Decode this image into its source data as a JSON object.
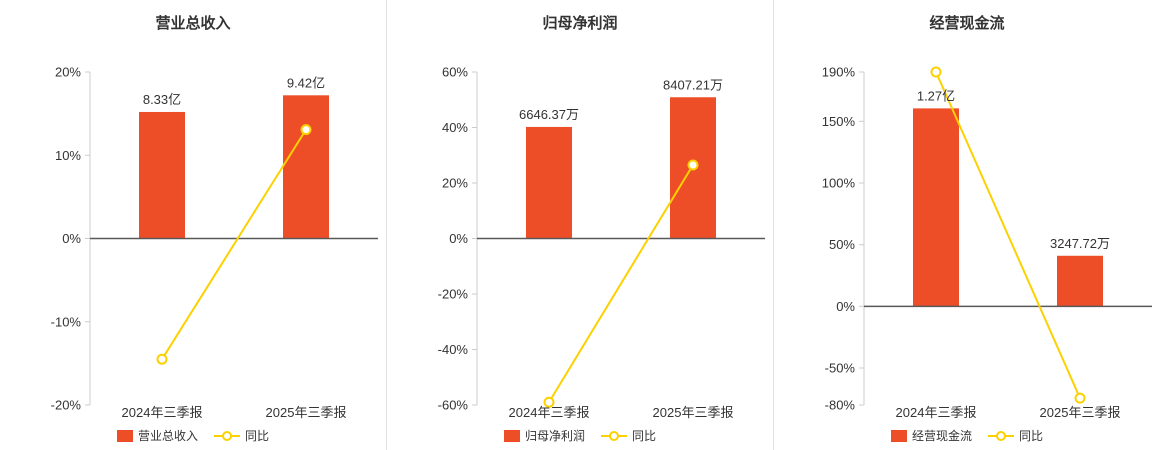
{
  "colors": {
    "bar": "#ed4d27",
    "line": "#fcd100",
    "axis": "#cccccc",
    "zero_line": "#595959",
    "text": "#333333",
    "divider": "#e0e0e0"
  },
  "chart_data": [
    {
      "type": "bar",
      "title": "营业总收入",
      "categories": [
        "2024年三季报",
        "2025年三季报"
      ],
      "ylim": [
        -20,
        20
      ],
      "yticks": [
        20,
        10,
        0,
        -10,
        -20
      ],
      "grid": false,
      "legend_position": "bottom",
      "bar_series": {
        "name": "营业总收入",
        "labels": [
          "8.33亿",
          "9.42亿"
        ],
        "display_values_axis_units": [
          15.2,
          17.2
        ]
      },
      "line_series": {
        "name": "同比",
        "unit": "%",
        "values": [
          -14.5,
          13.08
        ]
      }
    },
    {
      "type": "bar",
      "title": "归母净利润",
      "categories": [
        "2024年三季报",
        "2025年三季报"
      ],
      "ylim": [
        -60,
        60
      ],
      "yticks": [
        60,
        40,
        20,
        0,
        -20,
        -40,
        -60
      ],
      "grid": false,
      "legend_position": "bottom",
      "bar_series": {
        "name": "归母净利润",
        "labels": [
          "6646.37万",
          "8407.21万"
        ],
        "display_values_axis_units": [
          40.2,
          50.9
        ]
      },
      "line_series": {
        "name": "同比",
        "unit": "%",
        "values": [
          -59,
          26.49
        ]
      }
    },
    {
      "type": "bar",
      "title": "经营现金流",
      "categories": [
        "2024年三季报",
        "2025年三季报"
      ],
      "ylim": [
        -80,
        190
      ],
      "yticks": [
        190,
        150,
        100,
        50,
        0,
        -50,
        -80
      ],
      "grid": false,
      "legend_position": "bottom",
      "bar_series": {
        "name": "经营现金流",
        "labels": [
          "1.27亿",
          "3247.72万"
        ],
        "display_values_axis_units": [
          160.5,
          41
        ]
      },
      "line_series": {
        "name": "同比",
        "unit": "%",
        "values": [
          190,
          -74.43
        ]
      }
    }
  ]
}
